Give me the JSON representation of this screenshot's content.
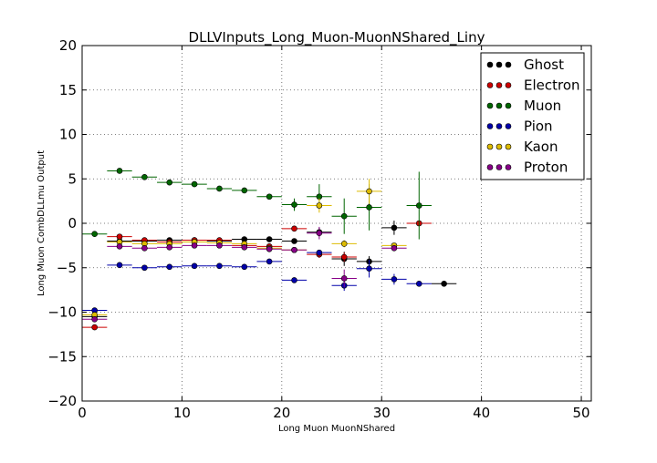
{
  "chart_data": {
    "type": "scatter",
    "title": "DLLVInputs_Long_Muon-MuonNShared_Liny",
    "xlabel": "Long Muon MuonNShared",
    "ylabel": "Long Muon CombDLLmu Output",
    "xlim": [
      0,
      51
    ],
    "ylim": [
      -20,
      20
    ],
    "xticks": [
      0,
      10,
      20,
      30,
      40,
      50
    ],
    "yticks": [
      -20,
      -15,
      -10,
      -5,
      0,
      5,
      10,
      15,
      20
    ],
    "xtick_labels": [
      "0",
      "10",
      "20",
      "30",
      "40",
      "50"
    ],
    "ytick_labels": [
      "−20",
      "−15",
      "−10",
      "−5",
      "0",
      "5",
      "10",
      "15",
      "20"
    ],
    "grid": true,
    "legend_position": "top-right",
    "bin_half_width": 1.25,
    "series": [
      {
        "name": "Ghost",
        "color": "#000000",
        "x": [
          1.25,
          3.75,
          6.25,
          8.75,
          11.25,
          13.75,
          16.25,
          18.75,
          21.25,
          23.75,
          26.25,
          28.75,
          31.25,
          36.25
        ],
        "y": [
          -10.5,
          -2.0,
          -2.0,
          -1.9,
          -1.9,
          -2.0,
          -1.8,
          -1.8,
          -2.0,
          -1.0,
          -4.0,
          -4.3,
          -0.5,
          -6.8
        ],
        "yerr": [
          0.3,
          0.15,
          0.1,
          0.1,
          0.1,
          0.1,
          0.1,
          0.15,
          0.2,
          0.5,
          0.8,
          0.6,
          0.8,
          0.1
        ]
      },
      {
        "name": "Electron",
        "color": "#cc0000",
        "x": [
          1.25,
          3.75,
          6.25,
          8.75,
          11.25,
          13.75,
          16.25,
          18.75,
          21.25,
          23.75,
          26.25,
          33.75
        ],
        "y": [
          -11.7,
          -1.5,
          -1.9,
          -2.1,
          -1.9,
          -1.9,
          -2.5,
          -2.6,
          -0.6,
          -3.5,
          -3.8,
          0.0
        ],
        "yerr": [
          0.3,
          0.15,
          0.1,
          0.1,
          0.1,
          0.1,
          0.15,
          0.2,
          0.3,
          0.4,
          0.5,
          0.3
        ]
      },
      {
        "name": "Muon",
        "color": "#006600",
        "x": [
          1.25,
          3.75,
          6.25,
          8.75,
          11.25,
          13.75,
          16.25,
          18.75,
          21.25,
          23.75,
          26.25,
          28.75,
          33.75
        ],
        "y": [
          -1.2,
          5.9,
          5.2,
          4.6,
          4.4,
          3.9,
          3.7,
          3.0,
          2.1,
          3.0,
          0.8,
          1.8,
          2.0
        ],
        "yerr": [
          0.1,
          0.15,
          0.1,
          0.1,
          0.1,
          0.1,
          0.1,
          0.2,
          0.7,
          1.4,
          2.0,
          2.6,
          3.8
        ]
      },
      {
        "name": "Pion",
        "color": "#0000aa",
        "x": [
          1.25,
          3.75,
          6.25,
          8.75,
          11.25,
          13.75,
          16.25,
          18.75,
          21.25,
          23.75,
          26.25,
          28.75,
          31.25,
          33.75
        ],
        "y": [
          -9.8,
          -4.7,
          -5.0,
          -4.9,
          -4.8,
          -4.8,
          -4.9,
          -4.3,
          -6.4,
          -3.3,
          -7.0,
          -5.1,
          -6.3,
          -6.8
        ],
        "yerr": [
          0.2,
          0.1,
          0.1,
          0.1,
          0.1,
          0.1,
          0.1,
          0.15,
          0.2,
          0.3,
          0.6,
          1.0,
          0.6,
          0.1
        ]
      },
      {
        "name": "Kaon",
        "color": "#ddbb00",
        "x": [
          1.25,
          3.75,
          6.25,
          8.75,
          11.25,
          13.75,
          16.25,
          18.75,
          21.25,
          23.75,
          26.25,
          28.75,
          31.25
        ],
        "y": [
          -10.3,
          -2.1,
          -2.3,
          -2.3,
          -2.1,
          -2.2,
          -2.3,
          -2.8,
          -3.0,
          2.0,
          -2.3,
          3.6,
          -2.5
        ],
        "yerr": [
          0.3,
          0.1,
          0.1,
          0.1,
          0.1,
          0.1,
          0.15,
          0.2,
          0.3,
          0.8,
          0.4,
          1.4,
          0.2
        ]
      },
      {
        "name": "Proton",
        "color": "#880088",
        "x": [
          1.25,
          3.75,
          6.25,
          8.75,
          11.25,
          13.75,
          16.25,
          18.75,
          21.25,
          23.75,
          26.25,
          31.25
        ],
        "y": [
          -10.8,
          -2.6,
          -2.8,
          -2.7,
          -2.5,
          -2.5,
          -2.7,
          -2.9,
          -3.0,
          -1.1,
          -6.2,
          -2.8
        ],
        "yerr": [
          0.3,
          0.15,
          0.1,
          0.1,
          0.1,
          0.1,
          0.15,
          0.2,
          0.3,
          0.7,
          1.0,
          0.2
        ]
      }
    ]
  }
}
